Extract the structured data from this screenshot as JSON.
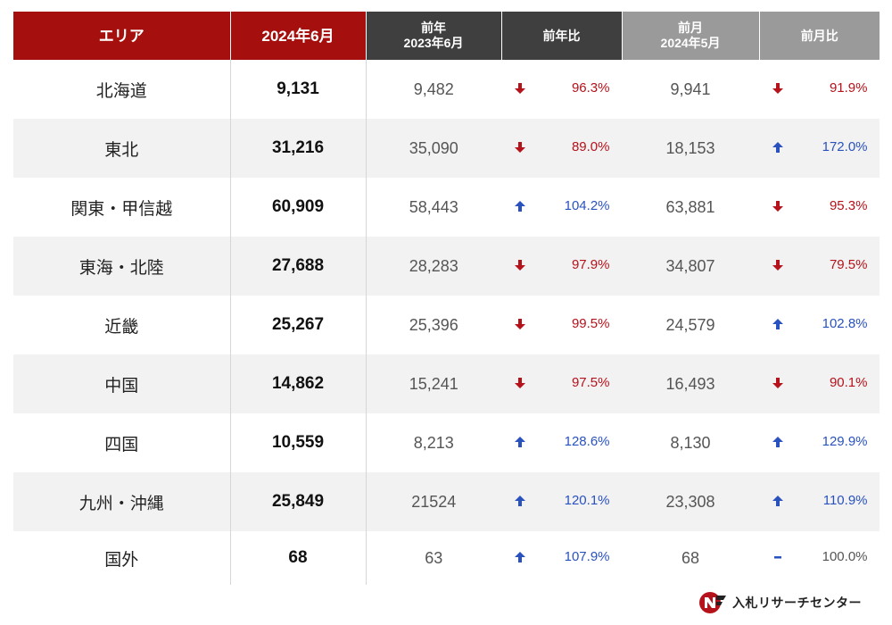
{
  "chart_data": {
    "type": "table",
    "columns": [
      {
        "key": "area",
        "label": "エリア"
      },
      {
        "key": "current",
        "label": "2024年6月"
      },
      {
        "key": "prev_year",
        "label": "前年",
        "sublabel": "2023年6月"
      },
      {
        "key": "yoy",
        "label": "前年比"
      },
      {
        "key": "prev_month",
        "label": "前月",
        "sublabel": "2024年5月"
      },
      {
        "key": "mom",
        "label": "前月比"
      }
    ],
    "rows": [
      {
        "area": "北海道",
        "current": "9,131",
        "prev_year": "9,482",
        "yoy": "96.3%",
        "yoy_dir": "down",
        "prev_month": "9,941",
        "mom": "91.9%",
        "mom_dir": "down"
      },
      {
        "area": "東北",
        "current": "31,216",
        "prev_year": "35,090",
        "yoy": "89.0%",
        "yoy_dir": "down",
        "prev_month": "18,153",
        "mom": "172.0%",
        "mom_dir": "up"
      },
      {
        "area": "関東・甲信越",
        "current": "60,909",
        "prev_year": "58,443",
        "yoy": "104.2%",
        "yoy_dir": "up",
        "prev_month": "63,881",
        "mom": "95.3%",
        "mom_dir": "down"
      },
      {
        "area": "東海・北陸",
        "current": "27,688",
        "prev_year": "28,283",
        "yoy": "97.9%",
        "yoy_dir": "down",
        "prev_month": "34,807",
        "mom": "79.5%",
        "mom_dir": "down"
      },
      {
        "area": "近畿",
        "current": "25,267",
        "prev_year": "25,396",
        "yoy": "99.5%",
        "yoy_dir": "down",
        "prev_month": "24,579",
        "mom": "102.8%",
        "mom_dir": "up"
      },
      {
        "area": "中国",
        "current": "14,862",
        "prev_year": "15,241",
        "yoy": "97.5%",
        "yoy_dir": "down",
        "prev_month": "16,493",
        "mom": "90.1%",
        "mom_dir": "down"
      },
      {
        "area": "四国",
        "current": "10,559",
        "prev_year": "8,213",
        "yoy": "128.6%",
        "yoy_dir": "up",
        "prev_month": "8,130",
        "mom": "129.9%",
        "mom_dir": "up"
      },
      {
        "area": "九州・沖縄",
        "current": "25,849",
        "prev_year": "21524",
        "yoy": "120.1%",
        "yoy_dir": "up",
        "prev_month": "23,308",
        "mom": "110.9%",
        "mom_dir": "up"
      },
      {
        "area": "国外",
        "current": "68",
        "prev_year": "63",
        "yoy": "107.9%",
        "yoy_dir": "up",
        "prev_month": "68",
        "mom": "100.0%",
        "mom_dir": "flat"
      }
    ]
  },
  "colors": {
    "header_red": "#a50f0e",
    "header_dark": "#3f3f3f",
    "header_gray": "#9a9a9a",
    "down": "#b5121b",
    "up": "#2a52be"
  },
  "icons": {
    "up": "arrow-up-icon",
    "down": "arrow-down-icon",
    "flat": "dash-icon"
  },
  "brand": {
    "name": "入札リサーチセンター",
    "logo_icon": "brand-logo-icon"
  }
}
